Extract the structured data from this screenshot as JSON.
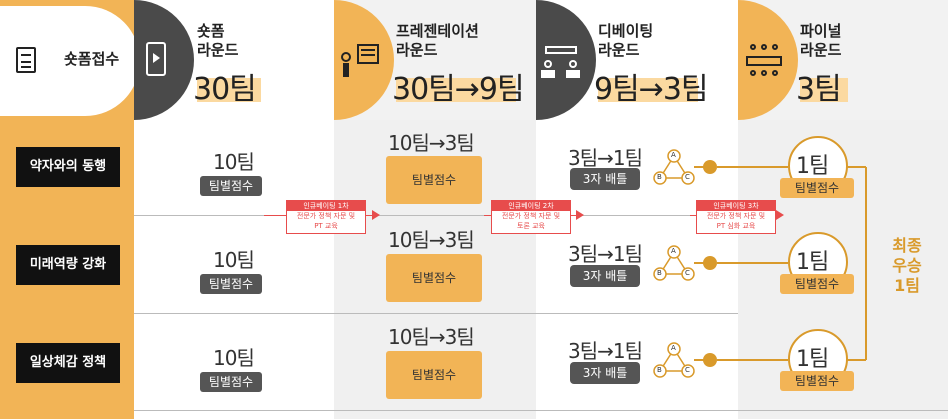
{
  "header": {
    "reception": {
      "label": "숏폼접수",
      "icon": "document-icon"
    },
    "stages": [
      {
        "title1": "숏폼",
        "title2": "라운드",
        "count": "30팀",
        "icon": "phone-video-icon"
      },
      {
        "title1": "프레젠테이션",
        "title2": "라운드",
        "count": "30팀→9팀",
        "icon": "presenter-icon"
      },
      {
        "title1": "디베이팅",
        "title2": "라운드",
        "count": "9팀→3팀",
        "icon": "debate-icon"
      },
      {
        "title1": "파이널",
        "title2": "라운드",
        "count": "3팀",
        "icon": "meeting-table-icon"
      }
    ]
  },
  "rows": [
    {
      "topic": "약자와의 동행",
      "short_count": "10팀",
      "short_badge": "팀별점수",
      "pres_count": "10팀→3팀",
      "pres_badge": "팀별점수",
      "deb_count": "3팀→1팀",
      "deb_badge": "3자 배틀",
      "final_count": "1팀",
      "final_badge": "팀별점수"
    },
    {
      "topic": "미래역량 강화",
      "short_count": "10팀",
      "short_badge": "팀별점수",
      "pres_count": "10팀→3팀",
      "pres_badge": "팀별점수",
      "deb_count": "3팀→1팀",
      "deb_badge": "3자 배틀",
      "final_count": "1팀",
      "final_badge": "팀별점수"
    },
    {
      "topic": "일상체감 정책",
      "short_count": "10팀",
      "short_badge": "팀별점수",
      "pres_count": "10팀→3팀",
      "pres_badge": "팀별점수",
      "deb_count": "3팀→1팀",
      "deb_badge": "3자 배틀",
      "final_count": "1팀",
      "final_badge": "팀별점수"
    }
  ],
  "incubating": [
    {
      "title": "인큐베이팅 1차",
      "line1": "전문가 정책 자문 및",
      "line2": "PT 교육"
    },
    {
      "title": "인큐베이팅 2차",
      "line1": "전문가 정책 자문 및",
      "line2": "토론 교육"
    },
    {
      "title": "인큐베이팅 3차",
      "line1": "전문가 정책 자문 및",
      "line2": "PT 심화 교육"
    }
  ],
  "battle_nodes": [
    "A",
    "B",
    "C"
  ],
  "final_result": [
    "최종",
    "우승",
    "1팀"
  ],
  "colors": {
    "accent": "#f2b456",
    "dark": "#4a4a4a",
    "red": "#e74c4c",
    "gold": "#d99a2b"
  }
}
